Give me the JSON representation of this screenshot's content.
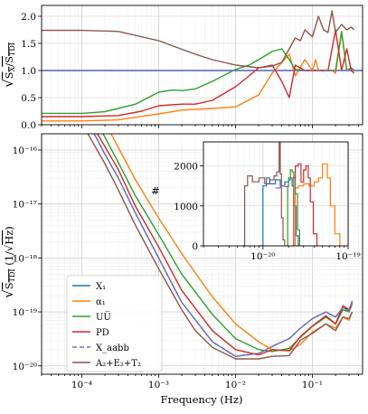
{
  "chart_data": [
    {
      "type": "line",
      "panel": "top",
      "ylabel": "√(S_X/S_TDI)",
      "xscale": "log",
      "xlim": [
        3e-05,
        0.45
      ],
      "ylim": [
        0,
        2.2
      ],
      "yticks": [
        0.0,
        0.5,
        1.0,
        1.5,
        2.0
      ],
      "ytick_labels": [
        "0.0",
        "0.5",
        "1.0",
        "1.5",
        "2.0"
      ],
      "grid": true,
      "series": [
        {
          "name": "X1",
          "color": "#1f77b4",
          "x": [
            3e-05,
            0.01,
            0.1,
            0.45
          ],
          "y": [
            1.0,
            1.0,
            1.0,
            1.0
          ]
        },
        {
          "name": "α1",
          "color": "#ff7f0e",
          "x": [
            3e-05,
            0.0001,
            0.0003,
            0.001,
            0.002,
            0.005,
            0.01,
            0.02,
            0.03,
            0.05,
            0.06,
            0.08,
            0.1,
            0.11,
            0.12,
            0.14,
            0.16,
            0.18,
            0.2,
            0.24,
            0.28,
            0.32,
            0.35
          ],
          "y": [
            0.07,
            0.07,
            0.09,
            0.2,
            0.27,
            0.3,
            0.33,
            0.55,
            0.95,
            1.3,
            0.9,
            1.2,
            1.0,
            1.2,
            1.0,
            1.0,
            1.0,
            1.0,
            0.95,
            1.7,
            1.0,
            1.05,
            1.0
          ]
        },
        {
          "name": "UŪ",
          "color": "#2ca02c",
          "x": [
            3e-05,
            0.0001,
            0.0002,
            0.0005,
            0.001,
            0.0015,
            0.002,
            0.003,
            0.005,
            0.01,
            0.015,
            0.02,
            0.03,
            0.04,
            0.05,
            0.06,
            0.08,
            0.1,
            0.12,
            0.16,
            0.2,
            0.24,
            0.28,
            0.32,
            0.35
          ],
          "y": [
            0.21,
            0.21,
            0.24,
            0.38,
            0.6,
            0.64,
            0.63,
            0.66,
            0.8,
            1.02,
            1.1,
            1.2,
            1.35,
            1.4,
            1.2,
            1.02,
            1.0,
            1.0,
            1.0,
            1.0,
            1.0,
            1.72,
            1.0,
            1.05,
            1.0
          ]
        },
        {
          "name": "PD",
          "color": "#d62728",
          "x": [
            3e-05,
            0.0001,
            0.0003,
            0.0006,
            0.001,
            0.002,
            0.003,
            0.005,
            0.01,
            0.015,
            0.02,
            0.03,
            0.04,
            0.05,
            0.06,
            0.08,
            0.1,
            0.12,
            0.16,
            0.2,
            0.24,
            0.28,
            0.32,
            0.35
          ],
          "y": [
            0.15,
            0.15,
            0.17,
            0.25,
            0.35,
            0.38,
            0.38,
            0.45,
            0.7,
            0.9,
            1.05,
            1.1,
            0.8,
            0.5,
            1.1,
            1.0,
            1.0,
            1.0,
            1.0,
            1.75,
            1.0,
            1.4,
            1.0,
            0.95
          ]
        },
        {
          "name": "Xaαbb",
          "color": "#9467bd",
          "dashed": true,
          "x": [
            3e-05,
            0.01,
            0.1,
            0.45
          ],
          "y": [
            1.0,
            1.0,
            1.0,
            1.0
          ]
        },
        {
          "name": "A2+E2+T2",
          "color": "#8c564b",
          "x": [
            3e-05,
            0.0001,
            0.0003,
            0.001,
            0.003,
            0.005,
            0.01,
            0.02,
            0.03,
            0.04,
            0.05,
            0.06,
            0.07,
            0.08,
            0.1,
            0.12,
            0.14,
            0.16,
            0.18,
            0.2,
            0.24,
            0.28,
            0.32,
            0.35
          ],
          "y": [
            1.74,
            1.74,
            1.72,
            1.55,
            1.3,
            1.2,
            1.1,
            1.05,
            1.08,
            1.15,
            1.4,
            1.6,
            1.55,
            1.75,
            1.62,
            2.0,
            1.75,
            1.7,
            2.1,
            1.7,
            1.85,
            1.75,
            1.8,
            1.75
          ]
        }
      ]
    },
    {
      "type": "line",
      "panel": "bottom",
      "xlabel": "Frequency (Hz)",
      "ylabel": "√S_TDI (1/√Hz)",
      "xscale": "log",
      "yscale": "log",
      "xlim": [
        3e-05,
        0.45
      ],
      "ylim": [
        7e-21,
        2e-16
      ],
      "xtick_labels": [
        "10⁻⁴",
        "10⁻³",
        "10⁻²",
        "10⁻¹"
      ],
      "ytick_labels": [
        "10⁻²⁰",
        "10⁻¹⁹",
        "10⁻¹⁸",
        "10⁻¹⁷",
        "10⁻¹⁶"
      ],
      "grid": true,
      "legend_position": "lower-left",
      "legend": [
        "X₁",
        "α₁",
        "UU̅",
        "PD",
        "X_aabb",
        "A₂+E₂+T₂"
      ],
      "series": [
        {
          "name": "X1",
          "color": "#1f77b4",
          "x": [
            0.000145,
            0.0002,
            0.0003,
            0.0005,
            0.001,
            0.002,
            0.005,
            0.01,
            0.02,
            0.03,
            0.05,
            0.07,
            0.1,
            0.15,
            0.2,
            0.25,
            0.3,
            0.33
          ],
          "y": [
            2e-16,
            8.4e-17,
            3e-17,
            6.7e-18,
            1e-18,
            1.5e-19,
            2.8e-20,
            1.5e-20,
            1.7e-20,
            2.3e-20,
            3.2e-20,
            5e-20,
            7.5e-20,
            1e-19,
            8e-20,
            1.2e-19,
            1.05e-19,
            1.6e-19
          ]
        },
        {
          "name": "α1",
          "color": "#ff7f0e",
          "x": [
            0.00024,
            0.0003,
            0.0005,
            0.001,
            0.002,
            0.005,
            0.01,
            0.02,
            0.03,
            0.05,
            0.07,
            0.1,
            0.15,
            0.2,
            0.25,
            0.3,
            0.33
          ],
          "y": [
            2e-16,
            1.1e-16,
            2.8e-17,
            5.5e-18,
            1.2e-18,
            1.9e-19,
            6e-20,
            2.8e-20,
            2e-20,
            1.9e-20,
            2.5e-20,
            4.2e-20,
            6e-20,
            5e-20,
            8e-20,
            7e-20,
            1e-19
          ]
        },
        {
          "name": "UŪ",
          "color": "#2ca02c",
          "x": [
            0.00019,
            0.0003,
            0.0005,
            0.001,
            0.002,
            0.005,
            0.01,
            0.02,
            0.03,
            0.05,
            0.07,
            0.1,
            0.15,
            0.2,
            0.25,
            0.3,
            0.33
          ],
          "y": [
            2e-16,
            5.8e-17,
            1.4e-17,
            2.7e-18,
            5e-19,
            9e-20,
            3.2e-20,
            2e-20,
            1.85e-20,
            2.1e-20,
            3.4e-20,
            5.4e-20,
            8e-20,
            6e-20,
            1.1e-19,
            1e-19,
            1.4e-19
          ]
        },
        {
          "name": "PD",
          "color": "#d62728",
          "x": [
            0.00016,
            0.0003,
            0.0005,
            0.001,
            0.002,
            0.005,
            0.01,
            0.02,
            0.03,
            0.05,
            0.07,
            0.1,
            0.15,
            0.2,
            0.25,
            0.3,
            0.33
          ],
          "y": [
            2e-16,
            4.3e-17,
            9e-18,
            1.6e-18,
            2.5e-19,
            4.5e-20,
            2e-20,
            1.6e-20,
            2e-20,
            1.9e-20,
            3.5e-20,
            5.5e-20,
            8.5e-20,
            6e-20,
            1.3e-19,
            1.1e-19,
            1.5e-19
          ]
        },
        {
          "name": "Xaαbb",
          "color": "#9467bd",
          "dashed": true,
          "x": [
            0.000145,
            0.0002,
            0.0003,
            0.0005,
            0.001,
            0.002,
            0.005,
            0.01,
            0.02,
            0.03,
            0.05,
            0.07,
            0.1,
            0.15,
            0.2,
            0.25,
            0.3,
            0.33
          ],
          "y": [
            2e-16,
            8.4e-17,
            3e-17,
            6.7e-18,
            1e-18,
            1.5e-19,
            2.8e-20,
            1.5e-20,
            1.7e-20,
            2.3e-20,
            3.2e-20,
            5e-20,
            7.5e-20,
            1e-19,
            8e-20,
            1.2e-19,
            1.05e-19,
            1.6e-19
          ]
        },
        {
          "name": "A2+E2+T2",
          "color": "#8c564b",
          "x": [
            0.00012,
            0.0002,
            0.0003,
            0.0005,
            0.001,
            0.002,
            0.003,
            0.005,
            0.01,
            0.02,
            0.03,
            0.05,
            0.07,
            0.1,
            0.15,
            0.2,
            0.25,
            0.3,
            0.33
          ],
          "y": [
            2e-16,
            5.6e-17,
            1.8e-17,
            4e-18,
            6.3e-19,
            1.1e-19,
            4.5e-20,
            2.2e-20,
            1.35e-20,
            1.35e-20,
            1.5e-20,
            1.55e-20,
            3e-20,
            4e-20,
            6e-20,
            4.5e-20,
            8e-20,
            7.5e-20,
            1e-19
          ]
        }
      ]
    },
    {
      "type": "histogram",
      "panel": "inset",
      "ylabel": "#",
      "xscale": "log",
      "xlim": [
        2e-21,
        1e-19
      ],
      "ylim": [
        0,
        2600
      ],
      "yticks": [
        0,
        1000,
        2000
      ],
      "ytick_labels": [
        "0",
        "1000",
        "2000"
      ],
      "xtick_labels": [
        "10⁻²⁰",
        "10⁻¹⁹"
      ],
      "series": [
        {
          "name": "X1",
          "color": "#1f77b4",
          "x": [
            9e-21,
            1e-20,
            1.1e-20,
            1.2e-20,
            1.4e-20,
            1.6e-20,
            1.8e-20,
            2e-20,
            2.1e-20,
            2.2e-20,
            2.3e-20,
            2.45e-20,
            2.6e-20
          ],
          "y": [
            0,
            1500,
            1700,
            1550,
            1650,
            1500,
            1600,
            1650,
            1700,
            1500,
            1000,
            250,
            0
          ]
        },
        {
          "name": "α1",
          "color": "#ff7f0e",
          "x": [
            2.3e-20,
            2.4e-20,
            2.6e-20,
            3e-20,
            3.5e-20,
            4e-20,
            4.5e-20,
            5e-20,
            5.3e-20,
            5.7e-20,
            6.2e-20,
            7e-20,
            8e-20
          ],
          "y": [
            0,
            1450,
            1500,
            1550,
            1500,
            1600,
            1700,
            2050,
            2050,
            1700,
            1000,
            300,
            0
          ]
        },
        {
          "name": "UŪ",
          "color": "#2ca02c",
          "x": [
            1.85e-20,
            1.95e-20,
            2e-20,
            2.1e-20,
            2.2e-20,
            2.3e-20,
            2.4e-20,
            2.55e-20,
            2.7e-20
          ],
          "y": [
            0,
            1500,
            1700,
            1900,
            1850,
            1700,
            1300,
            400,
            0
          ]
        },
        {
          "name": "PD",
          "color": "#d62728",
          "x": [
            2.2e-20,
            2.3e-20,
            2.4e-20,
            2.6e-20,
            2.8e-20,
            3e-20,
            3.2e-20,
            3.4e-20,
            3.6e-20,
            3.9e-20,
            4.3e-20
          ],
          "y": [
            0,
            1700,
            2000,
            2050,
            1600,
            1900,
            2000,
            1700,
            1100,
            300,
            0
          ]
        },
        {
          "name": "Xaαbb",
          "color": "#9467bd",
          "x": [
            1.4e-20,
            1.6e-20,
            1.8e-20,
            2e-20
          ],
          "y": [
            1450,
            1500,
            1480,
            1500
          ]
        },
        {
          "name": "A2+E2+T2",
          "color": "#8c564b",
          "x": [
            5.7e-21,
            6.1e-21,
            6.6e-21,
            7.5e-21,
            9e-21,
            1.05e-20,
            1.2e-20,
            1.35e-20,
            1.45e-20,
            1.55e-20,
            1.6e-20,
            1.65e-20,
            1.72e-20,
            1.8e-20
          ],
          "y": [
            0,
            1500,
            1750,
            1600,
            1700,
            1550,
            1650,
            1750,
            1850,
            2600,
            1800,
            700,
            150,
            0
          ]
        }
      ]
    }
  ]
}
